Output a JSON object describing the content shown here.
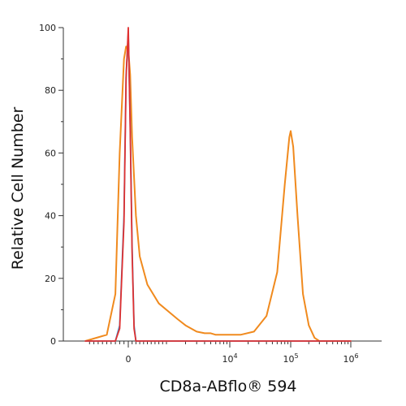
{
  "chart_data": {
    "type": "line",
    "title": "",
    "xlabel": "CD8a-ABflo® 594",
    "ylabel": "Relative Cell Number",
    "x_scale": "logicle",
    "xlim": [
      -1000,
      1000000
    ],
    "ylim": [
      0,
      100
    ],
    "y_ticks": [
      0,
      20,
      40,
      60,
      80,
      100
    ],
    "y_tick_labels": [
      "0",
      "20",
      "40",
      "60",
      "80",
      "100"
    ],
    "x_ticks": [
      {
        "value": 0,
        "label": "0",
        "exp": ""
      },
      {
        "value": 10000,
        "label": "10",
        "exp": "4"
      },
      {
        "value": 100000,
        "label": "10",
        "exp": "5"
      },
      {
        "value": 1000000,
        "label": "10",
        "exp": "6"
      }
    ],
    "grid": false,
    "legend": "none",
    "series": [
      {
        "color": "#f08a1e",
        "points": [
          [
            -1000,
            0
          ],
          [
            -500,
            2
          ],
          [
            -300,
            15
          ],
          [
            -200,
            60
          ],
          [
            -100,
            90
          ],
          [
            -50,
            94
          ],
          [
            0,
            93
          ],
          [
            50,
            85
          ],
          [
            100,
            65
          ],
          [
            200,
            40
          ],
          [
            300,
            27
          ],
          [
            500,
            18
          ],
          [
            800,
            12
          ],
          [
            1500,
            7
          ],
          [
            2000,
            5
          ],
          [
            3000,
            3
          ],
          [
            4000,
            2.5
          ],
          [
            5000,
            2.5
          ],
          [
            6000,
            2
          ],
          [
            8000,
            2
          ],
          [
            10000,
            2
          ],
          [
            15000,
            2
          ],
          [
            25000,
            3
          ],
          [
            40000,
            8
          ],
          [
            60000,
            22
          ],
          [
            80000,
            50
          ],
          [
            95000,
            65
          ],
          [
            100000,
            67
          ],
          [
            110000,
            62
          ],
          [
            130000,
            40
          ],
          [
            160000,
            15
          ],
          [
            200000,
            5
          ],
          [
            250000,
            1
          ],
          [
            300000,
            0
          ],
          [
            1000000,
            0
          ]
        ]
      },
      {
        "color": "#3a9bd9",
        "points": [
          [
            -1000,
            0
          ],
          [
            -300,
            0
          ],
          [
            -200,
            5
          ],
          [
            -100,
            40
          ],
          [
            -50,
            85
          ],
          [
            0,
            98
          ],
          [
            50,
            70
          ],
          [
            100,
            30
          ],
          [
            150,
            5
          ],
          [
            200,
            0
          ],
          [
            1000000,
            0
          ]
        ]
      },
      {
        "color": "#e03030",
        "points": [
          [
            -1000,
            0
          ],
          [
            -300,
            0
          ],
          [
            -200,
            4
          ],
          [
            -100,
            38
          ],
          [
            -50,
            84
          ],
          [
            0,
            100
          ],
          [
            50,
            68
          ],
          [
            100,
            28
          ],
          [
            150,
            4
          ],
          [
            200,
            0
          ],
          [
            1000000,
            0
          ]
        ]
      }
    ]
  }
}
